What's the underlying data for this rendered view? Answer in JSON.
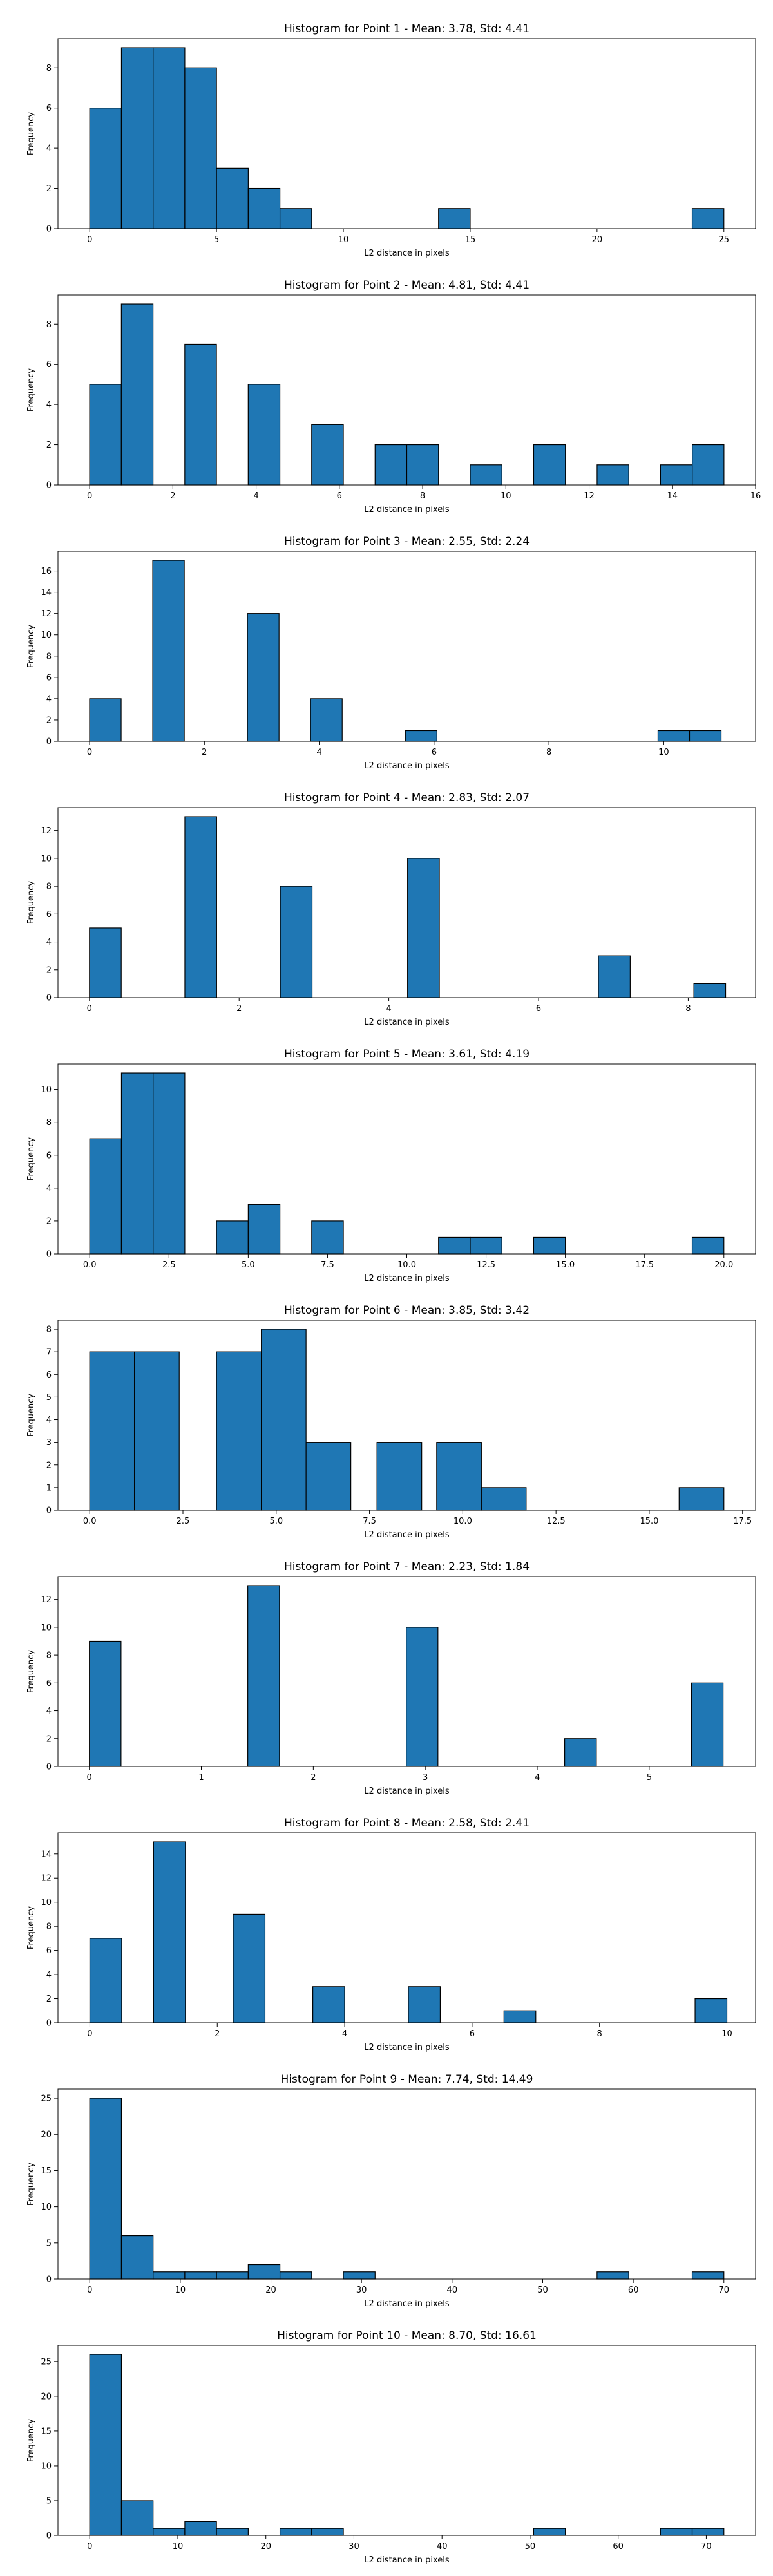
{
  "chart_data": [
    {
      "type": "bar",
      "title": "Histogram for Point 1 - Mean: 3.78, Std: 4.41",
      "xlabel": "L2 distance in pixels",
      "ylabel": "Frequency",
      "xlim": [
        -1.25,
        26.25
      ],
      "ylim": [
        0,
        9.45
      ],
      "xticks": [
        0,
        5,
        10,
        15,
        20,
        25
      ],
      "xtick_labels": [
        "0",
        "5",
        "10",
        "15",
        "20",
        "25"
      ],
      "yticks": [
        0,
        2,
        4,
        6,
        8
      ],
      "ytick_labels": [
        "0",
        "2",
        "4",
        "6",
        "8"
      ],
      "bars": [
        {
          "x0": 0,
          "x1": 1.25,
          "count": 6
        },
        {
          "x0": 1.25,
          "x1": 2.5,
          "count": 9
        },
        {
          "x0": 2.5,
          "x1": 3.75,
          "count": 9
        },
        {
          "x0": 3.75,
          "x1": 5.0,
          "count": 8
        },
        {
          "x0": 5.0,
          "x1": 6.25,
          "count": 3
        },
        {
          "x0": 6.25,
          "x1": 7.5,
          "count": 2
        },
        {
          "x0": 7.5,
          "x1": 8.75,
          "count": 1
        },
        {
          "x0": 13.75,
          "x1": 15.0,
          "count": 1
        },
        {
          "x0": 23.75,
          "x1": 25.0,
          "count": 1
        }
      ]
    },
    {
      "type": "bar",
      "title": "Histogram for Point 2 - Mean: 4.81, Std: 4.41",
      "xlabel": "L2 distance in pixels",
      "ylabel": "Frequency",
      "xlim": [
        -0.76,
        16.0
      ],
      "ylim": [
        0,
        9.45
      ],
      "xticks": [
        0,
        2,
        4,
        6,
        8,
        10,
        12,
        14,
        16
      ],
      "xtick_labels": [
        "0",
        "2",
        "4",
        "6",
        "8",
        "10",
        "12",
        "14",
        "16"
      ],
      "yticks": [
        0,
        2,
        4,
        6,
        8
      ],
      "ytick_labels": [
        "0",
        "2",
        "4",
        "6",
        "8"
      ],
      "bars": [
        {
          "x0": 0,
          "x1": 0.762,
          "count": 5
        },
        {
          "x0": 0.762,
          "x1": 1.524,
          "count": 9
        },
        {
          "x0": 2.286,
          "x1": 3.048,
          "count": 7
        },
        {
          "x0": 3.81,
          "x1": 4.572,
          "count": 5
        },
        {
          "x0": 5.334,
          "x1": 6.096,
          "count": 3
        },
        {
          "x0": 6.858,
          "x1": 7.62,
          "count": 2
        },
        {
          "x0": 7.62,
          "x1": 8.382,
          "count": 2
        },
        {
          "x0": 9.144,
          "x1": 9.906,
          "count": 1
        },
        {
          "x0": 10.668,
          "x1": 11.43,
          "count": 2
        },
        {
          "x0": 12.192,
          "x1": 12.954,
          "count": 1
        },
        {
          "x0": 13.716,
          "x1": 14.478,
          "count": 1
        },
        {
          "x0": 14.478,
          "x1": 15.24,
          "count": 2
        }
      ]
    },
    {
      "type": "bar",
      "title": "Histogram for Point 3 - Mean: 2.55, Std: 2.24",
      "xlabel": "L2 distance in pixels",
      "ylabel": "Frequency",
      "xlim": [
        -0.55,
        11.6
      ],
      "ylim": [
        0,
        17.85
      ],
      "xticks": [
        0,
        2,
        4,
        6,
        8,
        10
      ],
      "xtick_labels": [
        "0",
        "2",
        "4",
        "6",
        "8",
        "10"
      ],
      "yticks": [
        0,
        2,
        4,
        6,
        8,
        10,
        12,
        14,
        16
      ],
      "ytick_labels": [
        "0",
        "2",
        "4",
        "6",
        "8",
        "10",
        "12",
        "14",
        "16"
      ],
      "bars": [
        {
          "x0": 0,
          "x1": 0.55,
          "count": 4
        },
        {
          "x0": 1.1,
          "x1": 1.65,
          "count": 17
        },
        {
          "x0": 2.75,
          "x1": 3.3,
          "count": 12
        },
        {
          "x0": 3.85,
          "x1": 4.4,
          "count": 4
        },
        {
          "x0": 5.5,
          "x1": 6.05,
          "count": 1
        },
        {
          "x0": 9.9,
          "x1": 10.45,
          "count": 1
        },
        {
          "x0": 10.45,
          "x1": 11.0,
          "count": 1
        }
      ]
    },
    {
      "type": "bar",
      "title": "Histogram for Point 4 - Mean: 2.83, Std: 2.07",
      "xlabel": "L2 distance in pixels",
      "ylabel": "Frequency",
      "xlim": [
        -0.42,
        8.9
      ],
      "ylim": [
        0,
        13.65
      ],
      "xticks": [
        0,
        2,
        4,
        6,
        8
      ],
      "xtick_labels": [
        "0",
        "2",
        "4",
        "6",
        "8"
      ],
      "yticks": [
        0,
        2,
        4,
        6,
        8,
        10,
        12
      ],
      "ytick_labels": [
        "0",
        "2",
        "4",
        "6",
        "8",
        "10",
        "12"
      ],
      "bars": [
        {
          "x0": 0,
          "x1": 0.425,
          "count": 5
        },
        {
          "x0": 1.275,
          "x1": 1.7,
          "count": 13
        },
        {
          "x0": 2.55,
          "x1": 2.975,
          "count": 8
        },
        {
          "x0": 4.25,
          "x1": 4.675,
          "count": 10
        },
        {
          "x0": 6.8,
          "x1": 7.225,
          "count": 3
        },
        {
          "x0": 8.075,
          "x1": 8.5,
          "count": 1
        }
      ]
    },
    {
      "type": "bar",
      "title": "Histogram for Point 5 - Mean: 3.61, Std: 4.19",
      "xlabel": "L2 distance in pixels",
      "ylabel": "Frequency",
      "xlim": [
        -1.0,
        21.0
      ],
      "ylim": [
        0,
        11.55
      ],
      "xticks": [
        0,
        2.5,
        5,
        7.5,
        10,
        12.5,
        15,
        17.5,
        20
      ],
      "xtick_labels": [
        "0.0",
        "2.5",
        "5.0",
        "7.5",
        "10.0",
        "12.5",
        "15.0",
        "17.5",
        "20.0"
      ],
      "yticks": [
        0,
        2,
        4,
        6,
        8,
        10
      ],
      "ytick_labels": [
        "0",
        "2",
        "4",
        "6",
        "8",
        "10"
      ],
      "bars": [
        {
          "x0": 0,
          "x1": 1.0,
          "count": 7
        },
        {
          "x0": 1.0,
          "x1": 2.0,
          "count": 11
        },
        {
          "x0": 2.0,
          "x1": 3.0,
          "count": 11
        },
        {
          "x0": 4.0,
          "x1": 5.0,
          "count": 2
        },
        {
          "x0": 5.0,
          "x1": 6.0,
          "count": 3
        },
        {
          "x0": 7.0,
          "x1": 8.0,
          "count": 2
        },
        {
          "x0": 11.0,
          "x1": 12.0,
          "count": 1
        },
        {
          "x0": 12.0,
          "x1": 13.0,
          "count": 1
        },
        {
          "x0": 14.0,
          "x1": 15.0,
          "count": 1
        },
        {
          "x0": 19.0,
          "x1": 20.0,
          "count": 1
        }
      ]
    },
    {
      "type": "bar",
      "title": "Histogram for Point 6 - Mean: 3.85, Std: 3.42",
      "xlabel": "L2 distance in pixels",
      "ylabel": "Frequency",
      "xlim": [
        -0.85,
        17.85
      ],
      "ylim": [
        0,
        8.4
      ],
      "xticks": [
        0,
        2.5,
        5,
        7.5,
        10,
        12.5,
        15,
        17.5
      ],
      "xtick_labels": [
        "0.0",
        "2.5",
        "5.0",
        "7.5",
        "10.0",
        "12.5",
        "15.0",
        "17.5"
      ],
      "yticks": [
        0,
        1,
        2,
        3,
        4,
        5,
        6,
        7,
        8
      ],
      "ytick_labels": [
        "0",
        "1",
        "2",
        "3",
        "4",
        "5",
        "6",
        "7",
        "8"
      ],
      "bars": [
        {
          "x0": 0,
          "x1": 1.2,
          "count": 7
        },
        {
          "x0": 1.2,
          "x1": 2.4,
          "count": 7
        },
        {
          "x0": 3.4,
          "x1": 4.6,
          "count": 7
        },
        {
          "x0": 4.6,
          "x1": 5.8,
          "count": 8
        },
        {
          "x0": 5.8,
          "x1": 7.0,
          "count": 3
        },
        {
          "x0": 7.7,
          "x1": 8.9,
          "count": 3
        },
        {
          "x0": 9.3,
          "x1": 10.5,
          "count": 3
        },
        {
          "x0": 10.5,
          "x1": 11.7,
          "count": 1
        },
        {
          "x0": 15.8,
          "x1": 17.0,
          "count": 1
        }
      ]
    },
    {
      "type": "bar",
      "title": "Histogram for Point 7 - Mean: 2.23, Std: 1.84",
      "xlabel": "L2 distance in pixels",
      "ylabel": "Frequency",
      "xlim": [
        -0.28,
        5.95
      ],
      "ylim": [
        0,
        13.65
      ],
      "xticks": [
        0,
        1,
        2,
        3,
        4,
        5
      ],
      "xtick_labels": [
        "0",
        "1",
        "2",
        "3",
        "4",
        "5"
      ],
      "yticks": [
        0,
        2,
        4,
        6,
        8,
        10,
        12
      ],
      "ytick_labels": [
        "0",
        "2",
        "4",
        "6",
        "8",
        "10",
        "12"
      ],
      "bars": [
        {
          "x0": 0,
          "x1": 0.283,
          "count": 9
        },
        {
          "x0": 1.415,
          "x1": 1.698,
          "count": 13
        },
        {
          "x0": 2.83,
          "x1": 3.113,
          "count": 10
        },
        {
          "x0": 4.245,
          "x1": 4.528,
          "count": 2
        },
        {
          "x0": 5.377,
          "x1": 5.66,
          "count": 6
        }
      ]
    },
    {
      "type": "bar",
      "title": "Histogram for Point 8 - Mean: 2.58, Std: 2.41",
      "xlabel": "L2 distance in pixels",
      "ylabel": "Frequency",
      "xlim": [
        -0.5,
        10.45
      ],
      "ylim": [
        0,
        15.75
      ],
      "xticks": [
        0,
        2,
        4,
        6,
        8,
        10
      ],
      "xtick_labels": [
        "0",
        "2",
        "4",
        "6",
        "8",
        "10"
      ],
      "yticks": [
        0,
        2,
        4,
        6,
        8,
        10,
        12,
        14
      ],
      "ytick_labels": [
        "0",
        "2",
        "4",
        "6",
        "8",
        "10",
        "12",
        "14"
      ],
      "bars": [
        {
          "x0": 0,
          "x1": 0.5,
          "count": 7
        },
        {
          "x0": 1.0,
          "x1": 1.5,
          "count": 15
        },
        {
          "x0": 2.25,
          "x1": 2.75,
          "count": 9
        },
        {
          "x0": 3.5,
          "x1": 4.0,
          "count": 3
        },
        {
          "x0": 5.0,
          "x1": 5.5,
          "count": 3
        },
        {
          "x0": 6.5,
          "x1": 7.0,
          "count": 1
        },
        {
          "x0": 9.5,
          "x1": 10.0,
          "count": 2
        }
      ]
    },
    {
      "type": "bar",
      "title": "Histogram for Point 9 - Mean: 7.74, Std: 14.49",
      "xlabel": "L2 distance in pixels",
      "ylabel": "Frequency",
      "xlim": [
        -3.5,
        73.5
      ],
      "ylim": [
        0,
        26.25
      ],
      "xticks": [
        0,
        10,
        20,
        30,
        40,
        50,
        60,
        70
      ],
      "xtick_labels": [
        "0",
        "10",
        "20",
        "30",
        "40",
        "50",
        "60",
        "70"
      ],
      "yticks": [
        0,
        5,
        10,
        15,
        20,
        25
      ],
      "ytick_labels": [
        "0",
        "5",
        "10",
        "15",
        "20",
        "25"
      ],
      "bars": [
        {
          "x0": 0,
          "x1": 3.5,
          "count": 25
        },
        {
          "x0": 3.5,
          "x1": 7.0,
          "count": 6
        },
        {
          "x0": 7.0,
          "x1": 10.5,
          "count": 1
        },
        {
          "x0": 10.5,
          "x1": 14.0,
          "count": 1
        },
        {
          "x0": 14.0,
          "x1": 17.5,
          "count": 1
        },
        {
          "x0": 17.5,
          "x1": 21.0,
          "count": 2
        },
        {
          "x0": 21.0,
          "x1": 24.5,
          "count": 1
        },
        {
          "x0": 28.0,
          "x1": 31.5,
          "count": 1
        },
        {
          "x0": 56.0,
          "x1": 59.5,
          "count": 1
        },
        {
          "x0": 66.5,
          "x1": 70.0,
          "count": 1
        }
      ]
    },
    {
      "type": "bar",
      "title": "Histogram for Point 10 - Mean: 8.70, Std: 16.61",
      "xlabel": "L2 distance in pixels",
      "ylabel": "Frequency",
      "xlim": [
        -3.6,
        75.6
      ],
      "ylim": [
        0,
        27.3
      ],
      "xticks": [
        0,
        10,
        20,
        30,
        40,
        50,
        60,
        70
      ],
      "xtick_labels": [
        "0",
        "10",
        "20",
        "30",
        "40",
        "50",
        "60",
        "70"
      ],
      "yticks": [
        0,
        5,
        10,
        15,
        20,
        25
      ],
      "ytick_labels": [
        "0",
        "5",
        "10",
        "15",
        "20",
        "25"
      ],
      "bars": [
        {
          "x0": 0,
          "x1": 3.6,
          "count": 26
        },
        {
          "x0": 3.6,
          "x1": 7.2,
          "count": 5
        },
        {
          "x0": 7.2,
          "x1": 10.8,
          "count": 1
        },
        {
          "x0": 10.8,
          "x1": 14.4,
          "count": 2
        },
        {
          "x0": 14.4,
          "x1": 18.0,
          "count": 1
        },
        {
          "x0": 21.6,
          "x1": 25.2,
          "count": 1
        },
        {
          "x0": 25.2,
          "x1": 28.8,
          "count": 1
        },
        {
          "x0": 50.4,
          "x1": 54.0,
          "count": 1
        },
        {
          "x0": 64.8,
          "x1": 68.4,
          "count": 1
        },
        {
          "x0": 68.4,
          "x1": 72.0,
          "count": 1
        }
      ]
    }
  ]
}
